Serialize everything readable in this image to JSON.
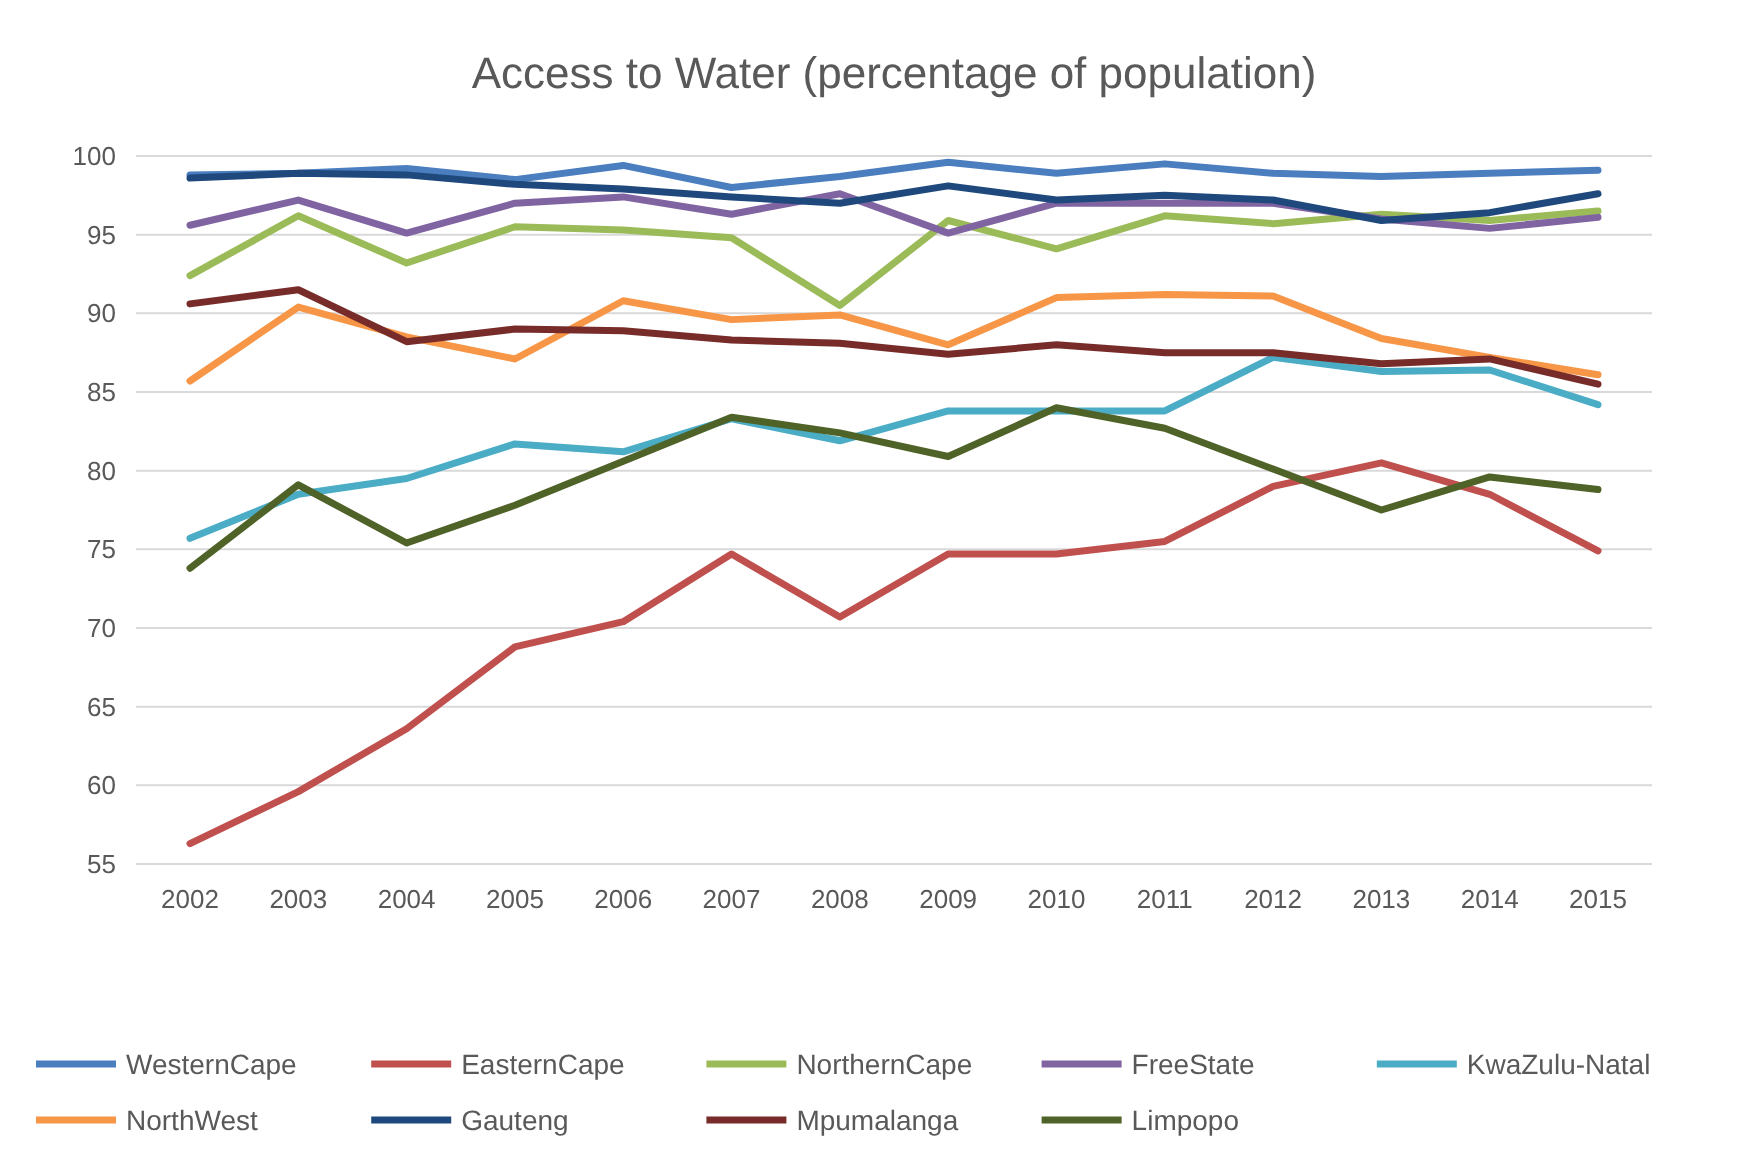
{
  "chart_data": {
    "type": "line",
    "title": "Access to Water (percentage of population)",
    "categories": [
      "2002",
      "2003",
      "2004",
      "2005",
      "2006",
      "2007",
      "2008",
      "2009",
      "2010",
      "2011",
      "2012",
      "2013",
      "2014",
      "2015"
    ],
    "ylim": [
      55,
      100
    ],
    "yticks": [
      55,
      60,
      65,
      70,
      75,
      80,
      85,
      90,
      95,
      100
    ],
    "grid": "y",
    "legend": "bottom",
    "marker": "none",
    "series": [
      {
        "name": "WesternCape",
        "color": "#4a7ebf",
        "values": [
          98.8,
          98.9,
          99.2,
          98.5,
          99.4,
          98.0,
          98.7,
          99.6,
          98.9,
          99.5,
          98.9,
          98.7,
          98.9,
          99.1
        ]
      },
      {
        "name": "EasternCape",
        "color": "#c0504d",
        "values": [
          56.3,
          59.6,
          63.6,
          68.8,
          70.4,
          74.7,
          70.7,
          74.7,
          74.7,
          75.5,
          79.0,
          80.5,
          78.5,
          74.9
        ]
      },
      {
        "name": "NorthernCape",
        "color": "#9bbb59",
        "values": [
          92.4,
          96.2,
          93.2,
          95.5,
          95.3,
          94.8,
          90.5,
          95.9,
          94.1,
          96.2,
          95.7,
          96.3,
          95.9,
          96.5
        ]
      },
      {
        "name": "FreeState",
        "color": "#8064a2",
        "values": [
          95.6,
          97.2,
          95.1,
          97.0,
          97.4,
          96.3,
          97.6,
          95.1,
          97.0,
          97.0,
          97.0,
          96.0,
          95.4,
          96.1
        ]
      },
      {
        "name": "KwaZulu-Natal",
        "color": "#4bacc6",
        "values": [
          75.7,
          78.5,
          79.5,
          81.7,
          81.2,
          83.3,
          81.9,
          83.8,
          83.8,
          83.8,
          87.2,
          86.3,
          86.4,
          84.2
        ]
      },
      {
        "name": "NorthWest",
        "color": "#f79646",
        "values": [
          85.7,
          90.4,
          88.5,
          87.1,
          90.8,
          89.6,
          89.9,
          88.0,
          91.0,
          91.2,
          91.1,
          88.4,
          87.2,
          86.1
        ]
      },
      {
        "name": "Gauteng",
        "color": "#1f497d",
        "values": [
          98.6,
          98.9,
          98.8,
          98.2,
          97.9,
          97.4,
          97.0,
          98.1,
          97.2,
          97.5,
          97.2,
          95.9,
          96.4,
          97.6
        ]
      },
      {
        "name": "Mpumalanga",
        "color": "#772c2a",
        "values": [
          90.6,
          91.5,
          88.2,
          89.0,
          88.9,
          88.3,
          88.1,
          87.4,
          88.0,
          87.5,
          87.5,
          86.8,
          87.1,
          85.5
        ]
      },
      {
        "name": "Limpopo",
        "color": "#4f6228",
        "values": [
          73.8,
          79.1,
          75.4,
          77.8,
          80.6,
          83.4,
          82.4,
          80.9,
          84.0,
          82.7,
          80.1,
          77.5,
          79.6,
          78.8
        ]
      }
    ]
  }
}
